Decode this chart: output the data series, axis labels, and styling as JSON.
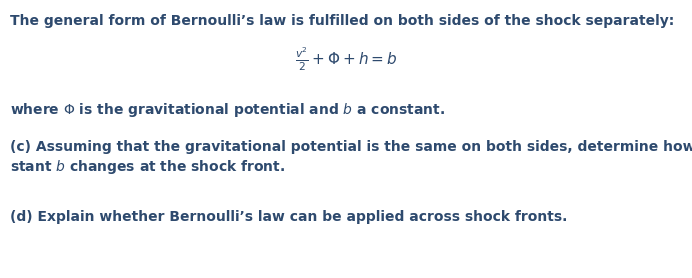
{
  "background_color": "#ffffff",
  "text_color": "#2e4a6e",
  "figsize": [
    6.92,
    2.78
  ],
  "dpi": 100,
  "line1": "The general form of Bernoulli’s law is fulfilled on both sides of the shock separately:",
  "equation": "$\\frac{v^2}{2} + \\Phi + h = b$",
  "line2_parts": [
    {
      "text": "where ",
      "style": "normal"
    },
    {
      "text": "$\\Phi$",
      "style": "math"
    },
    {
      "text": " is the gravitational potential and ",
      "style": "normal"
    },
    {
      "text": "$b$",
      "style": "math"
    },
    {
      "text": " a constant.",
      "style": "normal"
    }
  ],
  "line3": "(c) Assuming that the gravitational potential is the same on both sides, determine how the con-",
  "line4_parts": [
    {
      "text": "stant ",
      "style": "normal"
    },
    {
      "text": "$b$",
      "style": "math"
    },
    {
      "text": " changes at the shock front.",
      "style": "normal"
    }
  ],
  "line5": "(d) Explain whether Bernoulli’s law can be applied across shock fronts.",
  "font_size": 10.0,
  "equation_font_size": 11.0
}
